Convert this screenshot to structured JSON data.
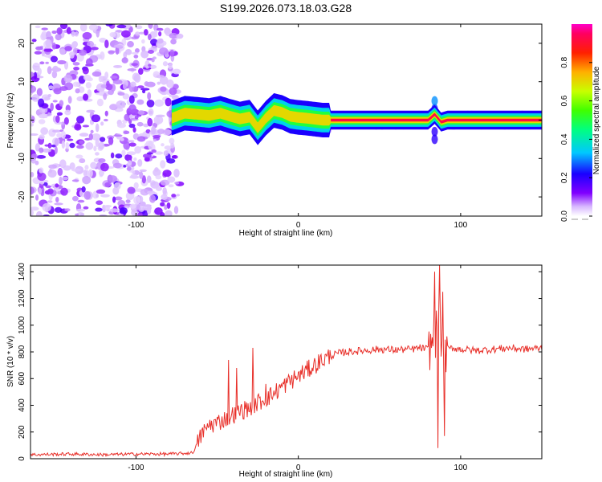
{
  "title": "S199.2026.073.18.03.G28",
  "colors": {
    "snr_line": "#e8302a",
    "axis": "#000000",
    "grid_bg": "#ffffff"
  },
  "chart_data": [
    {
      "type": "heatmap",
      "name": "spectrogram",
      "title": "S199.2026.073.18.03.G28",
      "xlabel": "Height of straight line (km)",
      "ylabel": "Frequency (Hz)",
      "xlim": [
        -165,
        150
      ],
      "ylim": [
        -25,
        25
      ],
      "xticks": [
        -100,
        0,
        100
      ],
      "yticks": [
        -20,
        -10,
        0,
        10,
        20
      ],
      "colorbar": {
        "label": "Normalized spectral amplitude",
        "range": [
          0,
          1
        ],
        "ticks": [
          0.0,
          0.2,
          0.4,
          0.6,
          0.8
        ],
        "colormap": "rainbow (white-violet-blue-cyan-green-yellow-red-magenta)"
      },
      "regions": [
        {
          "x_range": [
            -165,
            -75
          ],
          "description": "broadband low-amplitude noise",
          "amplitude": 0.15
        },
        {
          "x_range": [
            -75,
            20
          ],
          "description": "wavy signal line near 0 Hz",
          "amplitude": 0.6
        },
        {
          "x_range": [
            20,
            150
          ],
          "description": "strong flat signal at 0 Hz",
          "amplitude": 0.95
        }
      ],
      "signal_track": [
        {
          "x": -78,
          "y": 0.5
        },
        {
          "x": -70,
          "y": 1.8
        },
        {
          "x": -62,
          "y": 1.5
        },
        {
          "x": -55,
          "y": 1.2
        },
        {
          "x": -48,
          "y": 1.8
        },
        {
          "x": -42,
          "y": 1.0
        },
        {
          "x": -36,
          "y": 0.3
        },
        {
          "x": -30,
          "y": 0.8
        },
        {
          "x": -25,
          "y": -2.0
        },
        {
          "x": -20,
          "y": 0.5
        },
        {
          "x": -15,
          "y": 2.5
        },
        {
          "x": -10,
          "y": 2.0
        },
        {
          "x": -5,
          "y": 1.0
        },
        {
          "x": 0,
          "y": 0.7
        },
        {
          "x": 5,
          "y": 0.5
        },
        {
          "x": 15,
          "y": 0.0
        },
        {
          "x": 80,
          "y": 0.0
        },
        {
          "x": 84,
          "y": 1.5
        },
        {
          "x": 88,
          "y": -0.5
        },
        {
          "x": 92,
          "y": 0.0
        },
        {
          "x": 150,
          "y": 0.0
        }
      ]
    },
    {
      "type": "line",
      "name": "snr",
      "xlabel": "Height of straight line (km)",
      "ylabel": "SNR (10 * v/v)",
      "xlim": [
        -165,
        150
      ],
      "ylim": [
        0,
        1450
      ],
      "xticks": [
        -100,
        0,
        100
      ],
      "yticks": [
        0,
        200,
        400,
        600,
        800,
        1000,
        1200,
        1400
      ],
      "series": [
        {
          "name": "SNR",
          "color": "#e8302a",
          "x": [
            -165,
            -140,
            -120,
            -100,
            -80,
            -70,
            -65,
            -62,
            -58,
            -55,
            -50,
            -45,
            -40,
            -35,
            -30,
            -28,
            -25,
            -20,
            -15,
            -10,
            -5,
            0,
            5,
            10,
            15,
            20,
            25,
            30,
            40,
            50,
            60,
            70,
            75,
            80,
            84,
            86,
            88,
            90,
            92,
            95,
            100,
            110,
            120,
            130,
            140,
            150
          ],
          "values": [
            30,
            35,
            30,
            35,
            35,
            40,
            45,
            120,
            220,
            250,
            270,
            300,
            330,
            360,
            380,
            400,
            420,
            450,
            490,
            540,
            580,
            620,
            660,
            700,
            740,
            770,
            790,
            800,
            810,
            820,
            815,
            820,
            830,
            820,
            900,
            1000,
            850,
            800,
            820,
            830,
            820,
            810,
            820,
            830,
            820,
            830
          ]
        }
      ],
      "spikes": [
        {
          "x": -57,
          "value": 230
        },
        {
          "x": -43,
          "value": 740
        },
        {
          "x": -38,
          "value": 680
        },
        {
          "x": -28,
          "value": 830
        },
        {
          "x": -20,
          "value": 560
        },
        {
          "x": 84,
          "value": 1400
        },
        {
          "x": 86,
          "value": 80
        },
        {
          "x": 87,
          "value": 1450
        },
        {
          "x": 89,
          "value": 1250
        },
        {
          "x": 90,
          "value": 170
        }
      ]
    }
  ]
}
